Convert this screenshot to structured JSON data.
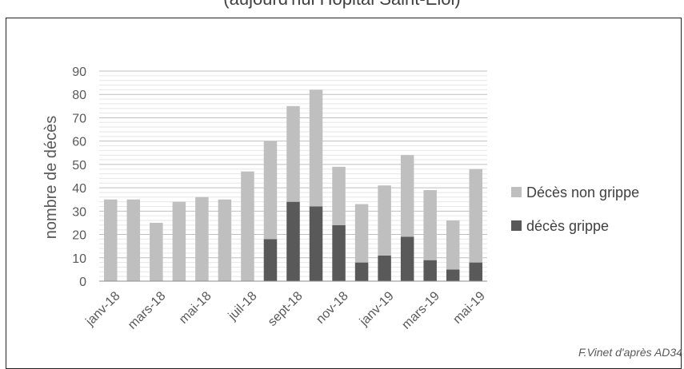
{
  "chart_data": {
    "type": "bar",
    "stacked": true,
    "title": "(aujourd'hui Hôpital Saint-Eloi)",
    "ylabel": "nombre de décès",
    "xlabel": "",
    "ylim": [
      0,
      90
    ],
    "yticks": [
      0,
      10,
      20,
      30,
      40,
      50,
      60,
      70,
      80,
      90
    ],
    "grid": true,
    "legend": "right",
    "categories": [
      "janv-18",
      "févr-18",
      "mars-18",
      "avr-18",
      "mai-18",
      "juin-18",
      "juil-18",
      "août-18",
      "sept-18",
      "oct-18",
      "nov-18",
      "déc-18",
      "janv-19",
      "févr-19",
      "mars-19",
      "avr-19",
      "mai-19"
    ],
    "visible_tick_labels": [
      "janv-18",
      "mars-18",
      "mai-18",
      "juil-18",
      "sept-18",
      "nov-18",
      "janv-19",
      "mars-19",
      "mai-19"
    ],
    "series": [
      {
        "name": "décès grippe",
        "color": "#595959",
        "values": [
          0,
          0,
          0,
          0,
          0,
          0,
          0,
          18,
          34,
          32,
          24,
          8,
          11,
          19,
          9,
          5,
          8
        ]
      },
      {
        "name": "Décès non grippe",
        "color": "#bfbfbf",
        "values": [
          35,
          35,
          25,
          34,
          36,
          35,
          47,
          42,
          41,
          50,
          25,
          25,
          30,
          35,
          30,
          21,
          40
        ]
      }
    ],
    "legend_order": [
      "Décès non grippe",
      "décès grippe"
    ]
  },
  "credit": "F.Vinet d'après AD34"
}
